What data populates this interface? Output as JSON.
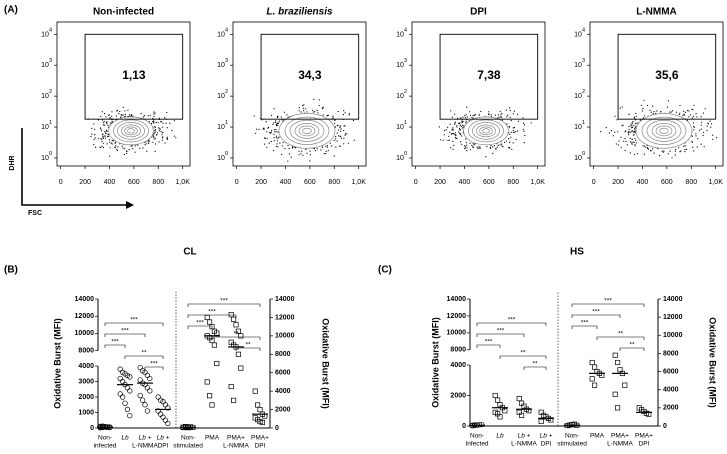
{
  "chart_data": [
    {
      "type": "flow",
      "panel": "(A)",
      "title": "Non-infected",
      "xlabel": "FSC",
      "ylabel": "DHR",
      "gate": {
        "value": 1.13,
        "label": "1,13"
      },
      "xlim": [
        -30,
        1060
      ],
      "xticks": [
        0,
        200,
        400,
        600,
        800,
        {
          "value": 1000,
          "label": "1,0K"
        }
      ],
      "log_y": true,
      "ylim": [
        0.55,
        25000
      ],
      "yticks": [
        {
          "value": 1,
          "label": "10",
          "power": "0"
        },
        {
          "value": 10,
          "label": "10",
          "power": "1"
        },
        {
          "value": 100,
          "label": "10",
          "power": "2"
        },
        {
          "value": 1000,
          "label": "10",
          "power": "3"
        },
        {
          "value": 10000,
          "label": "10",
          "power": "4"
        }
      ]
    },
    {
      "type": "flow",
      "title": "L. braziliensis",
      "gate": {
        "value": 34.3,
        "label": "34,3"
      },
      "xlim": [
        -30,
        1060
      ],
      "xticks": [
        0,
        200,
        400,
        600,
        800,
        {
          "value": 1000,
          "label": "1,0K"
        }
      ],
      "log_y": true,
      "ylim": [
        0.55,
        25000
      ],
      "yticks": [
        {
          "value": 1,
          "label": "10",
          "power": "0"
        },
        {
          "value": 10,
          "label": "10",
          "power": "1"
        },
        {
          "value": 100,
          "label": "10",
          "power": "2"
        },
        {
          "value": 1000,
          "label": "10",
          "power": "3"
        },
        {
          "value": 10000,
          "label": "10",
          "power": "4"
        }
      ]
    },
    {
      "type": "flow",
      "title": "DPI",
      "gate": {
        "value": 7.38,
        "label": "7,38"
      },
      "xlim": [
        -30,
        1060
      ],
      "xticks": [
        0,
        200,
        400,
        600,
        800,
        {
          "value": 1000,
          "label": "1,0K"
        }
      ],
      "log_y": true,
      "ylim": [
        0.55,
        25000
      ],
      "yticks": [
        {
          "value": 1,
          "label": "10",
          "power": "0"
        },
        {
          "value": 10,
          "label": "10",
          "power": "1"
        },
        {
          "value": 100,
          "label": "10",
          "power": "2"
        },
        {
          "value": 1000,
          "label": "10",
          "power": "3"
        },
        {
          "value": 10000,
          "label": "10",
          "power": "4"
        }
      ]
    },
    {
      "type": "flow",
      "title": "L-NMMA",
      "gate": {
        "value": 35.6,
        "label": "35,6"
      },
      "xlim": [
        -30,
        1060
      ],
      "xticks": [
        0,
        200,
        400,
        600,
        800,
        {
          "value": 1000,
          "label": "1,0K"
        }
      ],
      "log_y": true,
      "ylim": [
        0.55,
        25000
      ],
      "yticks": [
        {
          "value": 1,
          "label": "10",
          "power": "0"
        },
        {
          "value": 10,
          "label": "10",
          "power": "1"
        },
        {
          "value": 100,
          "label": "10",
          "power": "2"
        },
        {
          "value": 1000,
          "label": "10",
          "power": "3"
        },
        {
          "value": 10000,
          "label": "10",
          "power": "4"
        }
      ]
    },
    {
      "type": "dot",
      "panel": "(B)",
      "title": "CL",
      "ylabel": "Oxidative Burst (MFI)",
      "y2label": "Oxidative Burst (MFI)",
      "ylim": [
        0,
        14000
      ],
      "ybreak": [
        4000,
        8000
      ],
      "yticks": [
        0,
        1000,
        2000,
        3000,
        4000,
        8000,
        10000,
        12000,
        14000
      ],
      "y2lim": [
        0,
        14000
      ],
      "y2ticks": [
        0,
        2000,
        4000,
        6000,
        8000,
        10000,
        12000,
        14000
      ],
      "groups": [
        {
          "name": [
            "Non-",
            "infected"
          ],
          "marker": "circle",
          "values": [
            20,
            40,
            60,
            80,
            30,
            50,
            70,
            90,
            40,
            60,
            100,
            120
          ],
          "mean": 63
        },
        {
          "name": [
            "Lb"
          ],
          "marker": "circle",
          "values": [
            3800,
            3600,
            3500,
            3400,
            3300,
            3200,
            3000,
            2800,
            2600,
            2400,
            2200,
            2000,
            1600,
            1200,
            800
          ],
          "mean": 2800
        },
        {
          "name": [
            "Lb +",
            "L-NMMA"
          ],
          "marker": "circle",
          "values": [
            3900,
            3700,
            3600,
            3400,
            3200,
            3100,
            2900,
            2800,
            2600,
            2400,
            2100,
            1800,
            1500,
            1100
          ],
          "mean": 2900
        },
        {
          "name": [
            "Lb +",
            "DPI"
          ],
          "marker": "circle",
          "values": [
            2000,
            1800,
            1700,
            1500,
            1300,
            1100,
            900,
            700,
            500,
            300
          ],
          "mean": 1200
        },
        {
          "name": [
            "Non-",
            "stimulated"
          ],
          "marker": "square",
          "axis": "y2",
          "values": [
            50,
            80,
            100,
            120,
            60,
            90,
            150,
            40
          ],
          "mean": 90
        },
        {
          "name": [
            "PMA"
          ],
          "marker": "square",
          "axis": "y2",
          "values": [
            12000,
            11500,
            11000,
            10500,
            10300,
            10000,
            9800,
            9500,
            9000,
            7000,
            5000,
            3500,
            2500
          ],
          "mean": 10000
        },
        {
          "name": [
            "PMA+",
            "L-NMMA"
          ],
          "marker": "square",
          "axis": "y2",
          "values": [
            12300,
            11800,
            11200,
            10500,
            10000,
            9300,
            9000,
            8800,
            8000,
            6500,
            4500,
            3000
          ],
          "mean": 8800
        },
        {
          "name": [
            "PMA+",
            "DPI"
          ],
          "marker": "square",
          "axis": "y2",
          "values": [
            4000,
            2500,
            2000,
            1500,
            1300,
            1100,
            900,
            700,
            600
          ],
          "mean": 1500
        }
      ],
      "comparisons": [
        {
          "groups": [
            0,
            3
          ],
          "label": "***"
        },
        {
          "groups": [
            0,
            2
          ],
          "label": "***"
        },
        {
          "groups": [
            0,
            1
          ],
          "label": "***"
        },
        {
          "groups": [
            1,
            3
          ],
          "label": "**"
        },
        {
          "groups": [
            2,
            3
          ],
          "label": "***"
        },
        {
          "groups": [
            4,
            7
          ],
          "label": "***"
        },
        {
          "groups": [
            4,
            6
          ],
          "label": "***"
        },
        {
          "groups": [
            4,
            5
          ],
          "label": "***"
        },
        {
          "groups": [
            5,
            7
          ],
          "label": "**"
        },
        {
          "groups": [
            6,
            7
          ],
          "label": "**"
        }
      ]
    },
    {
      "type": "dot",
      "panel": "(C)",
      "title": "HS",
      "ylabel": "Oxidative Burst (MFI)",
      "y2label": "Oxidative Burst (MFI)",
      "ylim": [
        0,
        14000
      ],
      "ybreak": [
        4000,
        8000
      ],
      "yticks": [
        0,
        2000,
        4000,
        8000,
        10000,
        12000,
        14000
      ],
      "y2lim": [
        0,
        14000
      ],
      "y2ticks": [
        0,
        2000,
        4000,
        6000,
        8000,
        10000,
        12000,
        14000
      ],
      "groups": [
        {
          "name": [
            "Non-",
            "Infected"
          ],
          "marker": "circle",
          "values": [
            20,
            40,
            60,
            80,
            100,
            50,
            70
          ],
          "mean": 50
        },
        {
          "name": [
            "Lb"
          ],
          "marker": "square",
          "values": [
            2000,
            1700,
            1400,
            1200,
            1000,
            900,
            800,
            600
          ],
          "mean": 1200
        },
        {
          "name": [
            "Lb +",
            "L-NMMA"
          ],
          "marker": "square",
          "values": [
            1800,
            1500,
            1300,
            1100,
            1000,
            900,
            700
          ],
          "mean": 1100
        },
        {
          "name": [
            "Lb +",
            "DPI"
          ],
          "marker": "square",
          "values": [
            900,
            700,
            600,
            500,
            400,
            300
          ],
          "mean": 500
        },
        {
          "name": [
            "Non-",
            "stimulated"
          ],
          "marker": "square",
          "axis": "y2",
          "values": [
            50,
            100,
            150,
            200,
            80
          ],
          "mean": 100
        },
        {
          "name": [
            "PMA"
          ],
          "marker": "square",
          "axis": "y2",
          "values": [
            7000,
            6500,
            6000,
            5800,
            5600,
            5200,
            4500
          ],
          "mean": 5800
        },
        {
          "name": [
            "PMA+",
            "L-NMMA"
          ],
          "marker": "square",
          "axis": "y2",
          "values": [
            7800,
            7000,
            6200,
            5800,
            4500,
            3500,
            2000
          ],
          "mean": 5800
        },
        {
          "name": [
            "PMA+",
            "DPI"
          ],
          "marker": "square",
          "axis": "y2",
          "values": [
            2000,
            1800,
            1600,
            1400,
            1300
          ],
          "mean": 1500
        }
      ],
      "comparisons": [
        {
          "groups": [
            0,
            3
          ],
          "label": "***"
        },
        {
          "groups": [
            0,
            2
          ],
          "label": "***"
        },
        {
          "groups": [
            0,
            1
          ],
          "label": "***"
        },
        {
          "groups": [
            1,
            3
          ],
          "label": "**"
        },
        {
          "groups": [
            2,
            3
          ],
          "label": "**"
        },
        {
          "groups": [
            4,
            7
          ],
          "label": "***"
        },
        {
          "groups": [
            4,
            6
          ],
          "label": "***"
        },
        {
          "groups": [
            4,
            5
          ],
          "label": "***"
        },
        {
          "groups": [
            5,
            7
          ],
          "label": "**"
        },
        {
          "groups": [
            6,
            7
          ],
          "label": "**"
        }
      ]
    }
  ]
}
